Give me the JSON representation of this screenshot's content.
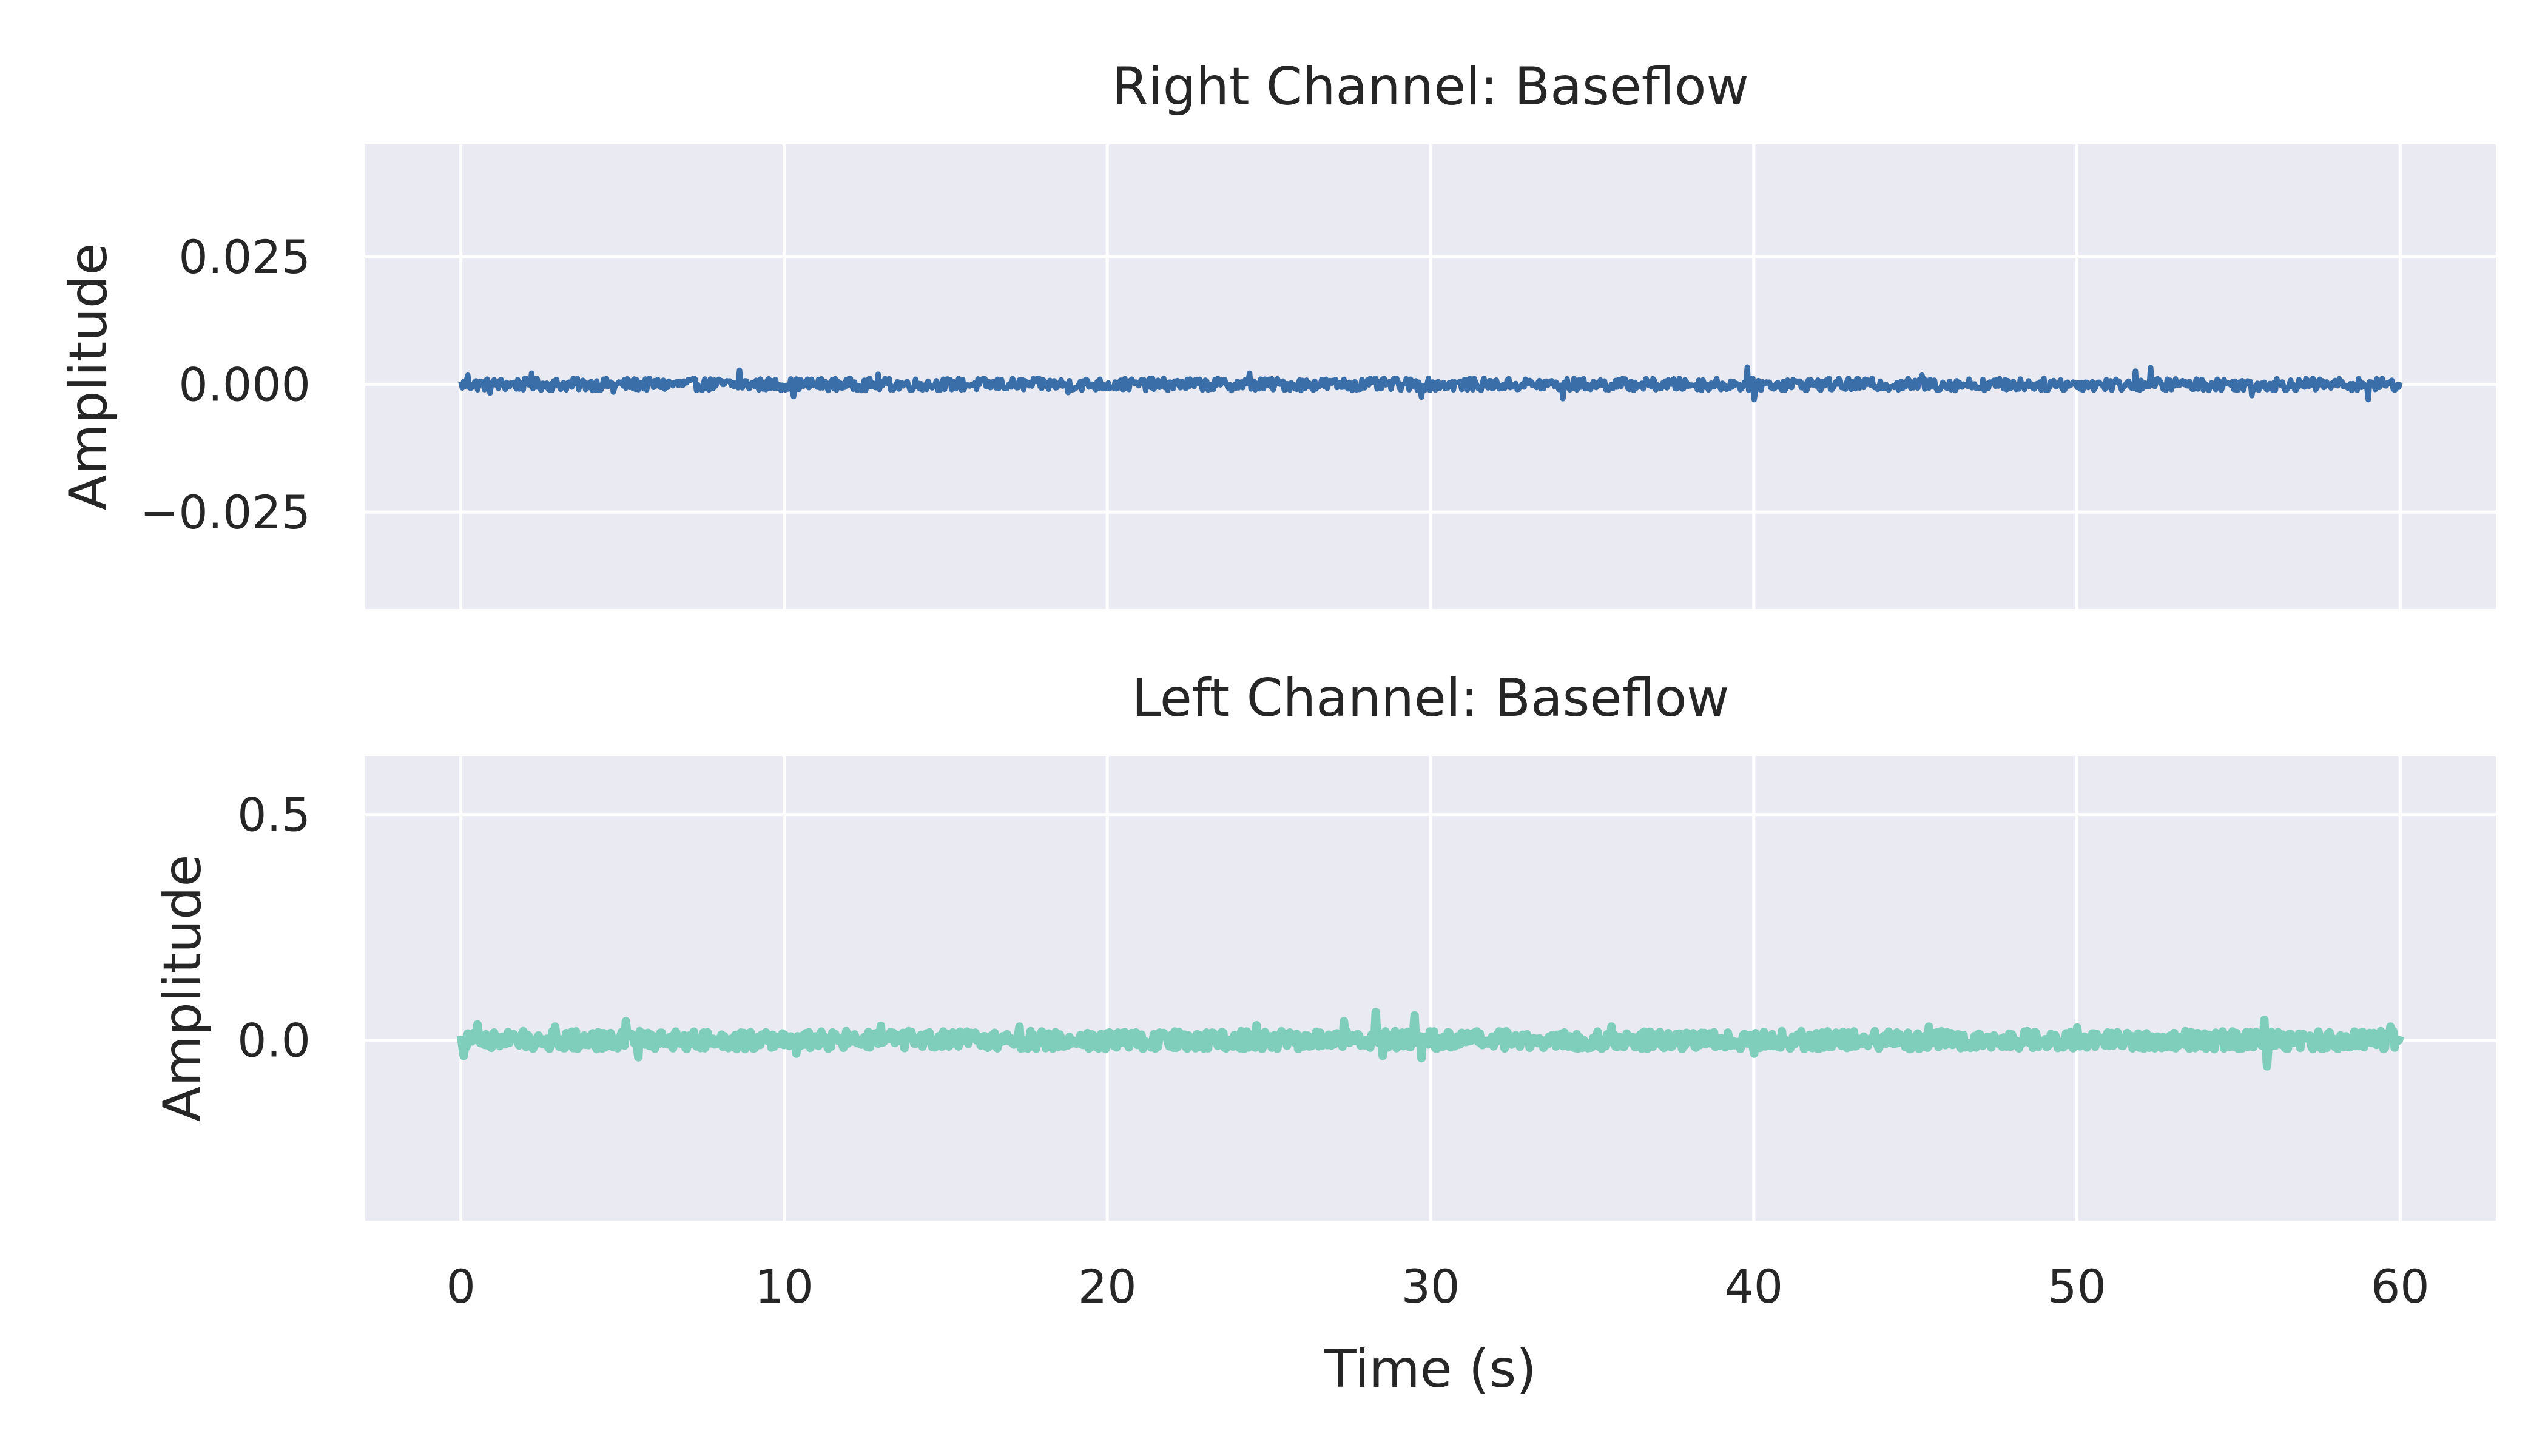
{
  "chart_data": [
    {
      "type": "line",
      "title": "Right Channel: Baseflow",
      "ylabel": "Amplitude",
      "xlabel": "",
      "xlim": [
        -2.96,
        62.96
      ],
      "ylim": [
        -0.044,
        0.047
      ],
      "xticks": [
        0,
        10,
        20,
        30,
        40,
        50,
        60
      ],
      "xtick_labels": [],
      "yticks": [
        -0.025,
        0.0,
        0.025
      ],
      "ytick_labels": [
        "−0.025",
        "0.000",
        "0.025"
      ],
      "grid": true,
      "background": "#eaeaf2",
      "series": [
        {
          "color": "#3a6ea8",
          "x_range": [
            0,
            60
          ],
          "baseline": 0.0,
          "noise_amplitude": 0.0012,
          "spikes": [
            {
              "x": 0.2,
              "y": 0.0018
            },
            {
              "x": 0.9,
              "y": -0.0017
            },
            {
              "x": 2.2,
              "y": 0.0022
            },
            {
              "x": 4.7,
              "y": -0.0015
            },
            {
              "x": 8.6,
              "y": 0.0028
            },
            {
              "x": 10.3,
              "y": -0.0024
            },
            {
              "x": 12.9,
              "y": 0.002
            },
            {
              "x": 18.8,
              "y": -0.0016
            },
            {
              "x": 24.4,
              "y": 0.0022
            },
            {
              "x": 29.7,
              "y": -0.0025
            },
            {
              "x": 34.1,
              "y": 0.003
            },
            {
              "x": 34.1,
              "y": -0.0028
            },
            {
              "x": 39.8,
              "y": 0.0034
            },
            {
              "x": 40.0,
              "y": -0.003
            },
            {
              "x": 45.2,
              "y": 0.0018
            },
            {
              "x": 51.8,
              "y": 0.0026
            },
            {
              "x": 52.3,
              "y": 0.0033
            },
            {
              "x": 55.4,
              "y": -0.0022
            },
            {
              "x": 59.0,
              "y": -0.003
            }
          ]
        }
      ]
    },
    {
      "type": "line",
      "title": "Left Channel: Baseflow",
      "ylabel": "Amplitude",
      "xlabel": "Time (s)",
      "xlim": [
        -2.96,
        62.96
      ],
      "ylim": [
        -0.4,
        0.63
      ],
      "xticks": [
        0,
        10,
        20,
        30,
        40,
        50,
        60
      ],
      "xtick_labels": [
        "0",
        "10",
        "20",
        "30",
        "40",
        "50",
        "60"
      ],
      "yticks": [
        0.0,
        0.5
      ],
      "ytick_labels": [
        "0.0",
        "0.5"
      ],
      "grid": true,
      "background": "#eaeaf2",
      "series": [
        {
          "color": "#7fcdbb",
          "x_range": [
            0,
            60
          ],
          "baseline": 0.0,
          "noise_amplitude": 0.02,
          "spikes": [
            {
              "x": 0.1,
              "y": -0.035
            },
            {
              "x": 0.5,
              "y": 0.035
            },
            {
              "x": 2.9,
              "y": 0.03
            },
            {
              "x": 5.1,
              "y": 0.042
            },
            {
              "x": 5.5,
              "y": -0.038
            },
            {
              "x": 10.4,
              "y": -0.03
            },
            {
              "x": 13.0,
              "y": 0.032
            },
            {
              "x": 17.3,
              "y": 0.03
            },
            {
              "x": 24.6,
              "y": 0.033
            },
            {
              "x": 27.3,
              "y": 0.042
            },
            {
              "x": 28.3,
              "y": 0.062
            },
            {
              "x": 28.5,
              "y": -0.035
            },
            {
              "x": 29.5,
              "y": 0.055
            },
            {
              "x": 29.7,
              "y": -0.04
            },
            {
              "x": 35.6,
              "y": 0.03
            },
            {
              "x": 40.0,
              "y": -0.03
            },
            {
              "x": 45.4,
              "y": 0.03
            },
            {
              "x": 50.0,
              "y": 0.028
            },
            {
              "x": 55.8,
              "y": 0.045
            },
            {
              "x": 55.9,
              "y": -0.058
            },
            {
              "x": 59.7,
              "y": 0.03
            }
          ]
        }
      ]
    }
  ]
}
